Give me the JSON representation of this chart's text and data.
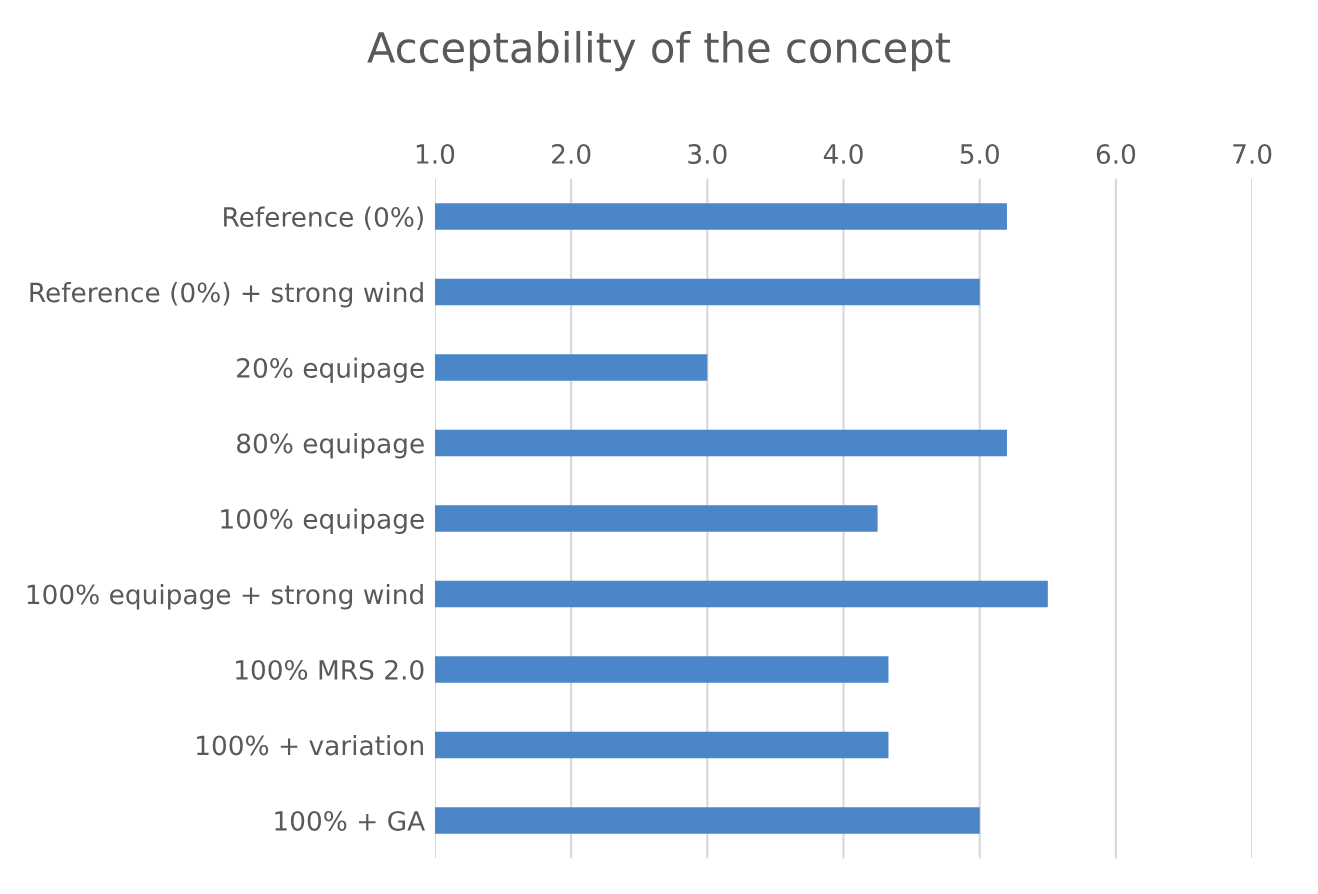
{
  "chart_data": {
    "type": "bar",
    "orientation": "horizontal",
    "title": "Acceptability of the concept",
    "categories": [
      "Reference (0%)",
      "Reference (0%) + strong wind",
      "20% equipage",
      "80% equipage",
      "100% equipage",
      "100% equipage + strong wind",
      "100% MRS 2.0",
      "100% + variation",
      "100% + GA"
    ],
    "values": [
      5.2,
      5.0,
      3.0,
      5.2,
      4.25,
      5.5,
      4.33,
      4.33,
      5.0
    ],
    "color": "#4a86c8",
    "xlim": [
      1,
      7
    ],
    "xticks": [
      {
        "value": 1,
        "label": "1.0"
      },
      {
        "value": 2,
        "label": "2.0"
      },
      {
        "value": 3,
        "label": "3.0"
      },
      {
        "value": 4,
        "label": "4.0"
      },
      {
        "value": 5,
        "label": "5.0"
      },
      {
        "value": 6,
        "label": "6.0"
      },
      {
        "value": 7,
        "label": "7.0"
      }
    ],
    "grid": "x"
  }
}
